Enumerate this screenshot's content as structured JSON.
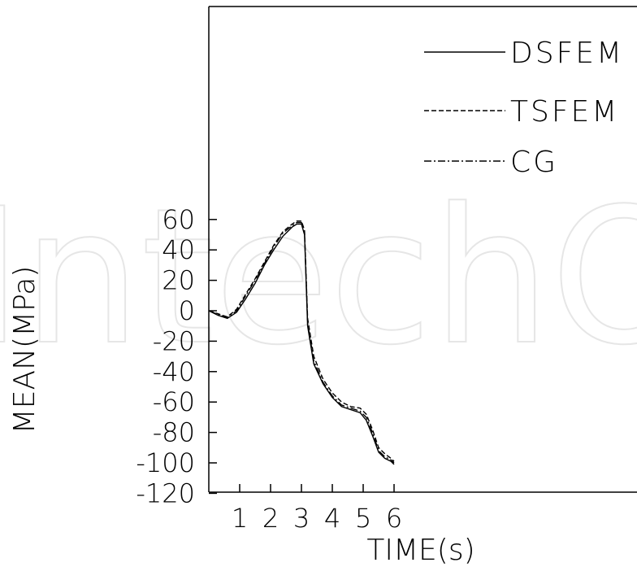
{
  "watermark": "IntechOpen",
  "chart_data": {
    "type": "line",
    "xlabel": "TIME(s)",
    "ylabel": "MEAN(MPa)",
    "xlim": [
      0,
      14
    ],
    "ylim": [
      -120,
      60
    ],
    "x_ticks": [
      "1",
      "2",
      "3",
      "4",
      "5",
      "6"
    ],
    "y_ticks": [
      "60",
      "40",
      "20",
      "0",
      "-20",
      "-40",
      "-60",
      "-80",
      "-100",
      "-120"
    ],
    "legend_position": "top-right",
    "series": [
      {
        "name": "DSFEM",
        "style": "solid",
        "x": [
          0,
          0.3,
          0.6,
          0.9,
          1.2,
          1.5,
          1.8,
          2.1,
          2.4,
          2.7,
          2.85,
          3.0,
          3.1,
          3.2,
          3.4,
          3.7,
          4.0,
          4.3,
          4.6,
          4.9,
          5.1,
          5.3,
          5.5,
          5.7,
          5.9,
          6.0
        ],
        "y": [
          0,
          -3,
          -5,
          -1,
          8,
          18,
          30,
          40,
          49,
          55,
          57,
          57,
          50,
          -10,
          -35,
          -48,
          -57,
          -63,
          -65,
          -67,
          -72,
          -82,
          -93,
          -97,
          -99,
          -101
        ]
      },
      {
        "name": "TSFEM",
        "style": "dash",
        "x": [
          0,
          0.3,
          0.6,
          0.9,
          1.2,
          1.5,
          1.8,
          2.1,
          2.4,
          2.7,
          2.85,
          3.0,
          3.1,
          3.2,
          3.4,
          3.7,
          4.0,
          4.3,
          4.6,
          4.9,
          5.1,
          5.3,
          5.5,
          5.7,
          5.9,
          6.0
        ],
        "y": [
          0,
          -2,
          -4,
          1,
          11,
          21,
          32,
          43,
          52,
          57,
          59,
          59,
          53,
          -5,
          -30,
          -45,
          -54,
          -60,
          -63,
          -64,
          -68,
          -78,
          -90,
          -94,
          -97,
          -99
        ]
      },
      {
        "name": "CG",
        "style": "dashdot",
        "x": [
          0,
          0.3,
          0.6,
          0.9,
          1.2,
          1.5,
          1.8,
          2.1,
          2.4,
          2.7,
          2.85,
          3.0,
          3.1,
          3.2,
          3.4,
          3.7,
          4.0,
          4.3,
          4.6,
          4.9,
          5.1,
          5.3,
          5.5,
          5.7,
          5.9,
          6.0
        ],
        "y": [
          0,
          -2.5,
          -4.5,
          0,
          10,
          20,
          31,
          42,
          51,
          56,
          58,
          58,
          52,
          -8,
          -33,
          -47,
          -56,
          -62,
          -64,
          -66,
          -70,
          -80,
          -92,
          -96,
          -98,
          -100
        ]
      }
    ]
  }
}
